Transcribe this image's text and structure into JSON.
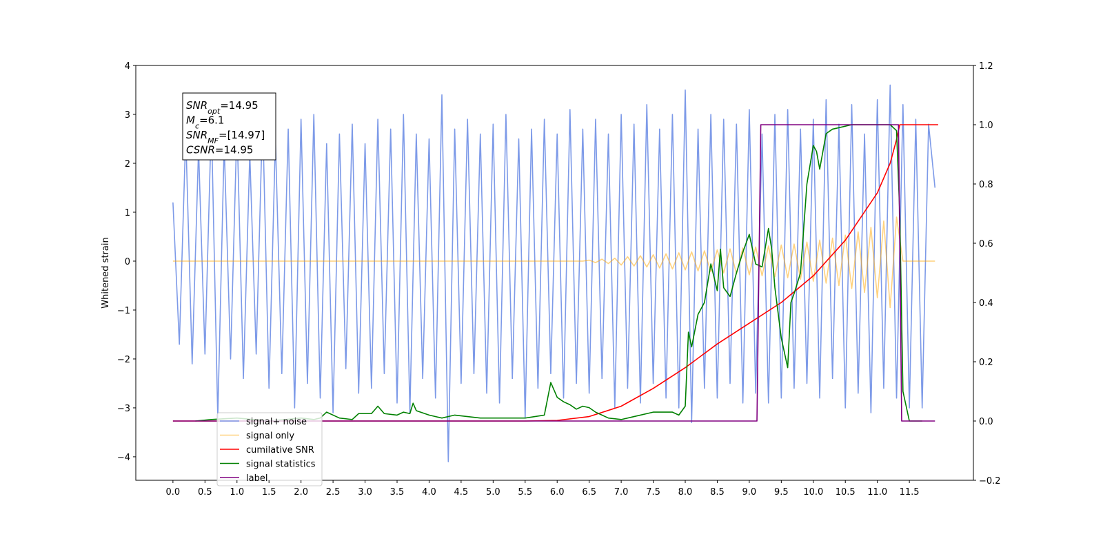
{
  "chart_data": {
    "type": "line",
    "y_label": "Whitened strain",
    "xlim": [
      -0.58,
      12.5
    ],
    "ylim": [
      -4.48,
      4.0
    ],
    "y2lim": [
      -0.2,
      1.2
    ],
    "xticks": [
      {
        "value": 0,
        "label": "0.0"
      },
      0.5,
      {
        "value": 1,
        "label": "1.0"
      },
      1.5,
      {
        "value": 2,
        "label": "2.0"
      },
      2.5,
      {
        "value": 3,
        "label": "3.0"
      },
      3.5,
      {
        "value": 4,
        "label": "4.0"
      },
      4.5,
      {
        "value": 5,
        "label": "5.0"
      },
      5.5,
      {
        "value": 6,
        "label": "6.0"
      },
      6.5,
      {
        "value": 7,
        "label": "7.0"
      },
      7.5,
      {
        "value": 8,
        "label": "8.0"
      },
      8.5,
      {
        "value": 9,
        "label": "9.0"
      },
      9.5,
      {
        "value": 10,
        "label": "10.0"
      },
      10.5,
      {
        "value": 11,
        "label": "11.0"
      },
      11.5
    ],
    "yticks": [
      {
        "value": -4,
        "label": "−4"
      },
      {
        "value": -3,
        "label": "−3"
      },
      {
        "value": -2,
        "label": "−2"
      },
      {
        "value": -1,
        "label": "−1"
      },
      0,
      1,
      2,
      3,
      4
    ],
    "y2ticks": [
      {
        "value": -0.2,
        "label": "−0.2"
      },
      {
        "value": 0,
        "label": "0.0"
      },
      0.2,
      0.4,
      0.6,
      0.8,
      {
        "value": 1,
        "label": "1.0"
      },
      1.2
    ],
    "x": [
      0.0,
      0.1,
      0.2,
      0.3,
      0.4,
      0.5,
      0.6,
      0.7,
      0.8,
      0.9,
      1.0,
      1.1,
      1.2,
      1.3,
      1.4,
      1.5,
      1.6,
      1.7,
      1.8,
      1.9,
      2.0,
      2.1,
      2.2,
      2.3,
      2.4,
      2.5,
      2.6,
      2.7,
      2.8,
      2.9,
      3.0,
      3.1,
      3.2,
      3.3,
      3.4,
      3.5,
      3.6,
      3.7,
      3.8,
      3.9,
      4.0,
      4.1,
      4.2,
      4.3,
      4.4,
      4.5,
      4.6,
      4.7,
      4.8,
      4.9,
      5.0,
      5.1,
      5.2,
      5.3,
      5.4,
      5.5,
      5.6,
      5.7,
      5.8,
      5.9,
      6.0,
      6.1,
      6.2,
      6.3,
      6.4,
      6.5,
      6.6,
      6.7,
      6.8,
      6.9,
      7.0,
      7.1,
      7.2,
      7.3,
      7.4,
      7.5,
      7.6,
      7.7,
      7.8,
      7.9,
      8.0,
      8.1,
      8.2,
      8.3,
      8.4,
      8.5,
      8.6,
      8.7,
      8.8,
      8.9,
      9.0,
      9.1,
      9.2,
      9.3,
      9.4,
      9.5,
      9.6,
      9.7,
      9.8,
      9.9,
      10.0,
      10.1,
      10.2,
      10.3,
      10.4,
      10.5,
      10.6,
      10.7,
      10.8,
      10.9,
      11.0,
      11.1,
      11.2,
      11.3,
      11.4,
      11.5,
      11.6,
      11.7,
      11.8,
      11.9
    ],
    "series": [
      {
        "name": "signal+ noise",
        "color": "#6f8fe6",
        "values": [
          1.2,
          -1.7,
          2.6,
          -2.1,
          2.3,
          -1.9,
          2.9,
          -3.2,
          2.4,
          -2.0,
          2.8,
          -2.4,
          2.2,
          -1.9,
          3.0,
          -2.6,
          2.5,
          -2.3,
          2.7,
          -3.0,
          2.9,
          -2.5,
          3.0,
          -2.8,
          2.4,
          -3.1,
          2.6,
          -2.2,
          2.8,
          -2.7,
          2.4,
          -2.6,
          2.9,
          -2.3,
          2.7,
          -2.9,
          3.0,
          -3.1,
          2.6,
          -2.4,
          2.5,
          -2.8,
          3.4,
          -4.1,
          2.7,
          -2.5,
          2.9,
          -2.3,
          2.6,
          -2.7,
          2.8,
          -2.9,
          3.0,
          -2.4,
          2.5,
          -3.2,
          2.7,
          -2.6,
          2.9,
          -2.3,
          2.6,
          -2.8,
          3.1,
          -2.5,
          2.7,
          -2.7,
          2.9,
          -2.4,
          2.6,
          -3.0,
          3.0,
          -2.6,
          2.8,
          -2.9,
          3.2,
          -2.5,
          2.7,
          -2.8,
          3.0,
          -3.0,
          3.5,
          -3.3,
          2.7,
          -2.6,
          3.0,
          -2.8,
          2.9,
          -2.5,
          2.8,
          -2.9,
          3.1,
          -2.7,
          2.6,
          -2.9,
          3.0,
          -2.8,
          3.1,
          -2.6,
          2.7,
          -2.5,
          2.9,
          -2.8,
          3.3,
          -2.4,
          2.8,
          -3.0,
          3.2,
          -2.7,
          2.6,
          -3.1,
          3.3,
          -2.6,
          3.6,
          -2.8,
          3.2,
          -3.0,
          2.9,
          -3.0,
          2.8,
          1.5
        ]
      },
      {
        "name": "signal only",
        "color": "#ffa500",
        "values": [
          0,
          0,
          0,
          0,
          0,
          0,
          0,
          0,
          0,
          0,
          0,
          0,
          0,
          0,
          0,
          0,
          0,
          0,
          0,
          0,
          0,
          0,
          0,
          0,
          0,
          0,
          0,
          0,
          0,
          0,
          0,
          0,
          0,
          0,
          0,
          0,
          0,
          0,
          0,
          0,
          0,
          0,
          0,
          0,
          0,
          0,
          0,
          0,
          0,
          0,
          0,
          0,
          0,
          0,
          0,
          0,
          0,
          0,
          0,
          0,
          0,
          0,
          0,
          0,
          0,
          0.02,
          -0.03,
          0.04,
          -0.05,
          0.06,
          -0.08,
          0.09,
          -0.1,
          0.11,
          -0.12,
          0.13,
          -0.14,
          0.15,
          -0.16,
          0.17,
          -0.18,
          0.19,
          -0.2,
          0.21,
          -0.22,
          0.23,
          -0.24,
          0.25,
          -0.26,
          0.27,
          -0.28,
          0.29,
          -0.3,
          0.31,
          -0.32,
          0.33,
          -0.34,
          0.35,
          -0.37,
          0.39,
          -0.41,
          0.43,
          -0.45,
          0.47,
          -0.5,
          0.53,
          -0.56,
          0.6,
          -0.64,
          0.69,
          -0.75,
          0.82,
          -0.95,
          0.9,
          0,
          0,
          0,
          0,
          0,
          0
        ]
      },
      {
        "name": "cumilative SNR",
        "color": "#ff0000",
        "axis": "y2",
        "x": [
          0.0,
          5.5,
          6.0,
          6.5,
          7.0,
          7.5,
          8.0,
          8.5,
          9.0,
          9.5,
          10.0,
          10.5,
          11.0,
          11.2,
          11.3,
          11.35,
          11.95
        ],
        "values": [
          0,
          0,
          0.002,
          0.015,
          0.05,
          0.11,
          0.18,
          0.26,
          0.33,
          0.4,
          0.49,
          0.61,
          0.77,
          0.87,
          0.95,
          1.0,
          1.0
        ]
      },
      {
        "name": "signal statistics",
        "color": "#008000",
        "axis": "y2",
        "x": [
          0.35,
          0.6,
          1.0,
          1.5,
          2.0,
          2.2,
          2.3,
          2.4,
          2.6,
          2.8,
          2.9,
          3.1,
          3.2,
          3.3,
          3.5,
          3.6,
          3.7,
          3.75,
          3.8,
          4.0,
          4.2,
          4.4,
          4.6,
          4.8,
          5.0,
          5.5,
          5.8,
          5.9,
          6.0,
          6.1,
          6.2,
          6.3,
          6.4,
          6.5,
          6.6,
          6.8,
          7.0,
          7.2,
          7.5,
          7.8,
          7.9,
          8.0,
          8.05,
          8.1,
          8.2,
          8.3,
          8.4,
          8.5,
          8.55,
          8.6,
          8.7,
          8.8,
          8.9,
          9.0,
          9.1,
          9.2,
          9.3,
          9.35,
          9.4,
          9.5,
          9.6,
          9.65,
          9.7,
          9.8,
          9.9,
          10.0,
          10.05,
          10.1,
          10.2,
          10.3,
          10.4,
          10.6,
          10.8,
          11.0,
          11.2,
          11.3,
          11.35,
          11.4,
          11.5,
          11.6,
          11.7
        ],
        "values": [
          0.0,
          0.005,
          0.01,
          0.0,
          0.01,
          0.005,
          0.01,
          0.03,
          0.01,
          0.005,
          0.025,
          0.025,
          0.05,
          0.025,
          0.02,
          0.03,
          0.025,
          0.06,
          0.035,
          0.02,
          0.01,
          0.02,
          0.015,
          0.01,
          0.01,
          0.01,
          0.02,
          0.13,
          0.08,
          0.065,
          0.055,
          0.04,
          0.05,
          0.045,
          0.03,
          0.01,
          0.005,
          0.015,
          0.03,
          0.03,
          0.02,
          0.05,
          0.3,
          0.25,
          0.36,
          0.4,
          0.53,
          0.44,
          0.58,
          0.45,
          0.42,
          0.5,
          0.57,
          0.63,
          0.53,
          0.52,
          0.65,
          0.58,
          0.45,
          0.28,
          0.18,
          0.4,
          0.43,
          0.5,
          0.8,
          0.93,
          0.91,
          0.85,
          0.97,
          0.985,
          0.99,
          1.0,
          1.0,
          1.0,
          1.0,
          0.98,
          0.7,
          0.1,
          0.0,
          0.0,
          0.0
        ]
      },
      {
        "name": "label",
        "color": "#800080",
        "axis": "y2",
        "x": [
          0.0,
          9.12,
          9.18,
          11.33,
          11.38,
          11.9
        ],
        "values": [
          0,
          0,
          1,
          1,
          0,
          0
        ]
      }
    ],
    "annotation": [
      {
        "symbol": "SNR",
        "sub": "opt",
        "text": "=14.95"
      },
      {
        "symbol": "M",
        "sub": "c",
        "text": "=6.1"
      },
      {
        "symbol": "SNR",
        "sub": "MF",
        "text": "=[14.97]"
      },
      {
        "symbol": "CSNR",
        "text": "=14.95"
      }
    ]
  }
}
